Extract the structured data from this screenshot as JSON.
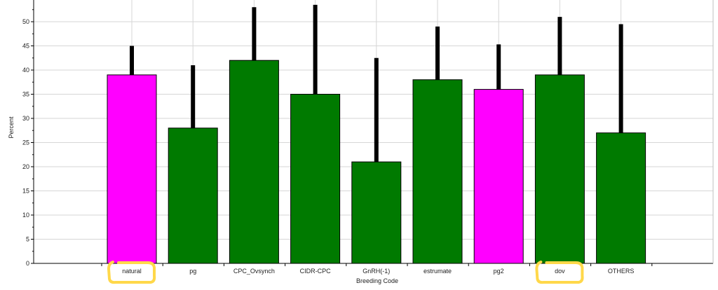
{
  "chart_data": {
    "type": "bar",
    "categories": [
      "natural",
      "pg",
      "CPC_Ovsynch",
      "CIDR-CPC",
      "GnRH(-1)",
      "estrumate",
      "pg2",
      "dov",
      "OTHERS"
    ],
    "values": [
      39,
      28,
      42,
      35,
      21,
      38,
      36,
      39,
      27
    ],
    "error_upper": [
      45,
      41,
      53,
      53.5,
      42.5,
      49,
      45.3,
      51,
      49.5
    ],
    "bar_colors": [
      "#ff00ff",
      "#007a00",
      "#007a00",
      "#007a00",
      "#007a00",
      "#007a00",
      "#ff00ff",
      "#007a00",
      "#007a00"
    ],
    "highlighted_categories": [
      "natural",
      "dov"
    ],
    "highlight_color": "#ffd84a",
    "xlabel": "Breeding Code",
    "ylabel": "Percent",
    "ylim": [
      0,
      55
    ],
    "yticks": [
      0,
      5,
      10,
      15,
      20,
      25,
      30,
      35,
      40,
      45,
      50
    ],
    "grid": true,
    "legend": "none"
  }
}
